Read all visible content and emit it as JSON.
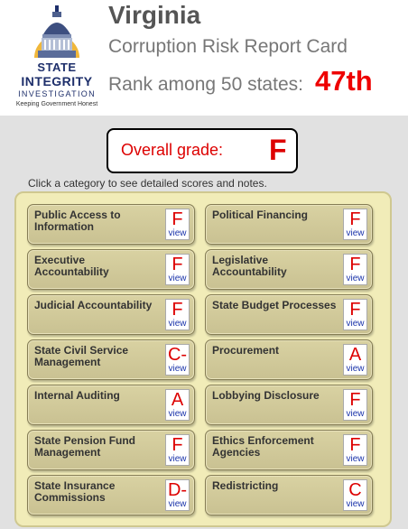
{
  "header": {
    "logo": {
      "line1": "STATE",
      "line2": "INTEGRITY",
      "line3": "INVESTIGATION",
      "line4": "Keeping Government Honest"
    },
    "state_name": "Virginia",
    "subtitle": "Corruption Risk Report Card",
    "rank_label": "Rank among 50 states:",
    "rank_value": "47th"
  },
  "overall": {
    "label": "Overall grade:",
    "grade": "F"
  },
  "instructions": "Click a category to see detailed scores and notes.",
  "categories": [
    {
      "label": "Public Access to Information",
      "grade": "F",
      "view": "view"
    },
    {
      "label": "Political Financing",
      "grade": "F",
      "view": "view"
    },
    {
      "label": "Executive Accountability",
      "grade": "F",
      "view": "view"
    },
    {
      "label": "Legislative Accountability",
      "grade": "F",
      "view": "view"
    },
    {
      "label": "Judicial Accountability",
      "grade": "F",
      "view": "view"
    },
    {
      "label": "State Budget Processes",
      "grade": "F",
      "view": "view"
    },
    {
      "label": "State Civil Service Management",
      "grade": "C-",
      "view": "view"
    },
    {
      "label": "Procurement",
      "grade": "A",
      "view": "view"
    },
    {
      "label": "Internal Auditing",
      "grade": "A",
      "view": "view"
    },
    {
      "label": "Lobbying Disclosure",
      "grade": "F",
      "view": "view"
    },
    {
      "label": "State Pension Fund Management",
      "grade": "F",
      "view": "view"
    },
    {
      "label": "Ethics Enforcement Agencies",
      "grade": "F",
      "view": "view"
    },
    {
      "label": "State Insurance Commissions",
      "grade": "D-",
      "view": "view"
    },
    {
      "label": "Redistricting",
      "grade": "C",
      "view": "view"
    }
  ],
  "colors": {
    "grade": "#dd0000",
    "view_link": "#1a33aa",
    "panel": "#f1ecb8",
    "tile": "#d2cb9b"
  }
}
